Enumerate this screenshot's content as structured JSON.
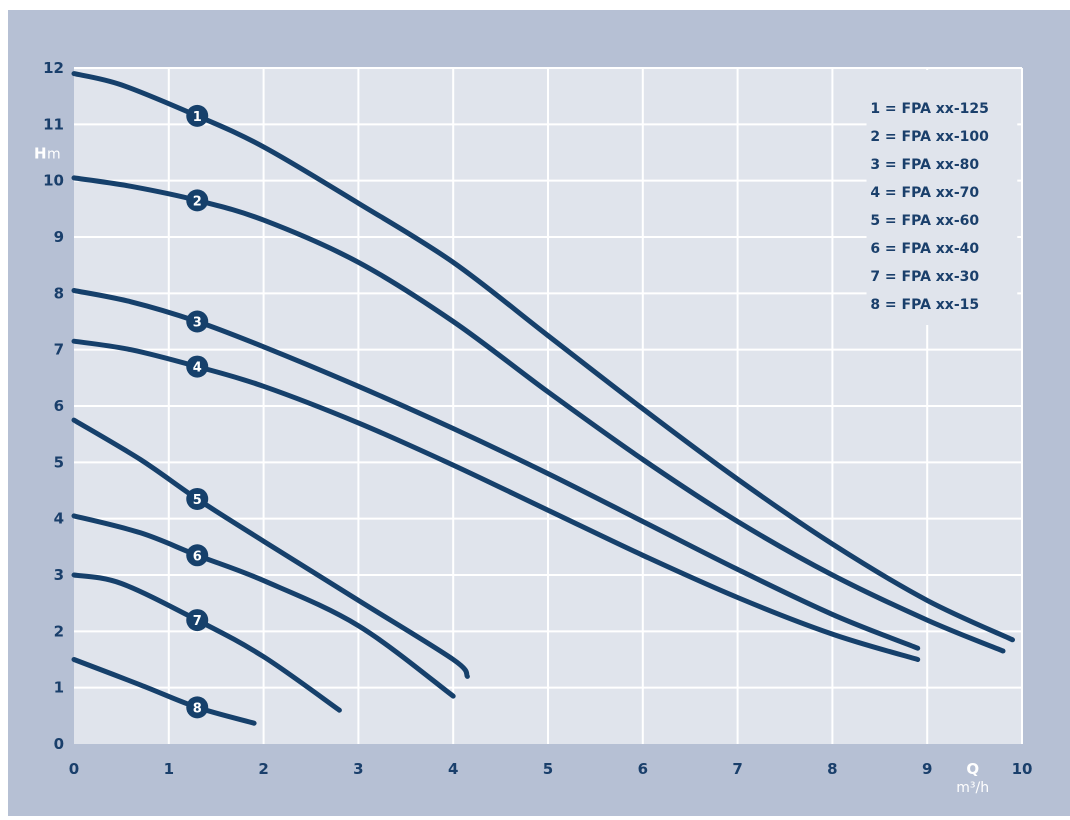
{
  "chart_data": {
    "type": "line",
    "title": "",
    "xlabel": {
      "symbol": "Q",
      "unit": "m³/h"
    },
    "ylabel": {
      "symbol": "H",
      "unit": "m"
    },
    "xlim": [
      0,
      10
    ],
    "ylim": [
      0,
      12
    ],
    "x_ticks": [
      "0",
      "1",
      "2",
      "3",
      "4",
      "5",
      "6",
      "7",
      "8",
      "9",
      "10"
    ],
    "y_ticks": [
      "0",
      "1",
      "2",
      "3",
      "4",
      "5",
      "6",
      "7",
      "8",
      "9",
      "10",
      "11",
      "12"
    ],
    "grid": true,
    "legend_position": "top-right",
    "colors": {
      "frame": "#b6c0d4",
      "plot_bg": "#e0e4ec",
      "grid": "#ffffff",
      "line": "#16406b"
    },
    "series": [
      {
        "id": "1",
        "name": "1 = FPA xx-125",
        "marker_x": 1.3,
        "points": [
          [
            0,
            11.9
          ],
          [
            0.5,
            11.7
          ],
          [
            1.3,
            11.15
          ],
          [
            2,
            10.6
          ],
          [
            3,
            9.6
          ],
          [
            4,
            8.55
          ],
          [
            5,
            7.25
          ],
          [
            6,
            5.95
          ],
          [
            7,
            4.7
          ],
          [
            8,
            3.55
          ],
          [
            9,
            2.55
          ],
          [
            9.9,
            1.85
          ]
        ]
      },
      {
        "id": "2",
        "name": "2 = FPA xx-100",
        "marker_x": 1.3,
        "points": [
          [
            0,
            10.05
          ],
          [
            0.6,
            9.9
          ],
          [
            1.3,
            9.65
          ],
          [
            2,
            9.3
          ],
          [
            3,
            8.55
          ],
          [
            4,
            7.5
          ],
          [
            5,
            6.25
          ],
          [
            6,
            5.05
          ],
          [
            7,
            3.95
          ],
          [
            8,
            3.0
          ],
          [
            9,
            2.2
          ],
          [
            9.8,
            1.65
          ]
        ]
      },
      {
        "id": "3",
        "name": "3 = FPA xx-80",
        "marker_x": 1.3,
        "points": [
          [
            0,
            8.05
          ],
          [
            0.6,
            7.85
          ],
          [
            1.3,
            7.5
          ],
          [
            2,
            7.05
          ],
          [
            3,
            6.35
          ],
          [
            4,
            5.6
          ],
          [
            5,
            4.8
          ],
          [
            6,
            3.95
          ],
          [
            7,
            3.1
          ],
          [
            8,
            2.3
          ],
          [
            8.9,
            1.7
          ]
        ]
      },
      {
        "id": "4",
        "name": "4 = FPA xx-70",
        "marker_x": 1.3,
        "points": [
          [
            0,
            7.15
          ],
          [
            0.6,
            7.0
          ],
          [
            1.3,
            6.7
          ],
          [
            2,
            6.35
          ],
          [
            3,
            5.7
          ],
          [
            4,
            4.95
          ],
          [
            5,
            4.15
          ],
          [
            6,
            3.35
          ],
          [
            7,
            2.6
          ],
          [
            8,
            1.95
          ],
          [
            8.9,
            1.5
          ]
        ]
      },
      {
        "id": "5",
        "name": "5 = FPA xx-60",
        "marker_x": 1.3,
        "points": [
          [
            0,
            5.75
          ],
          [
            0.7,
            5.05
          ],
          [
            1.3,
            4.35
          ],
          [
            2,
            3.6
          ],
          [
            3,
            2.55
          ],
          [
            4,
            1.5
          ],
          [
            4.15,
            1.2
          ]
        ]
      },
      {
        "id": "6",
        "name": "6 = FPA xx-40",
        "marker_x": 1.3,
        "points": [
          [
            0,
            4.05
          ],
          [
            0.7,
            3.75
          ],
          [
            1.3,
            3.35
          ],
          [
            2,
            2.9
          ],
          [
            3,
            2.1
          ],
          [
            4,
            0.85
          ]
        ]
      },
      {
        "id": "7",
        "name": "7 = FPA xx-30",
        "marker_x": 1.3,
        "points": [
          [
            0,
            3.0
          ],
          [
            0.5,
            2.85
          ],
          [
            1.3,
            2.2
          ],
          [
            2,
            1.55
          ],
          [
            2.8,
            0.6
          ]
        ]
      },
      {
        "id": "8",
        "name": "8 = FPA xx-15",
        "marker_x": 1.3,
        "points": [
          [
            0,
            1.5
          ],
          [
            0.7,
            1.05
          ],
          [
            1.3,
            0.65
          ],
          [
            1.9,
            0.37
          ]
        ]
      }
    ]
  }
}
